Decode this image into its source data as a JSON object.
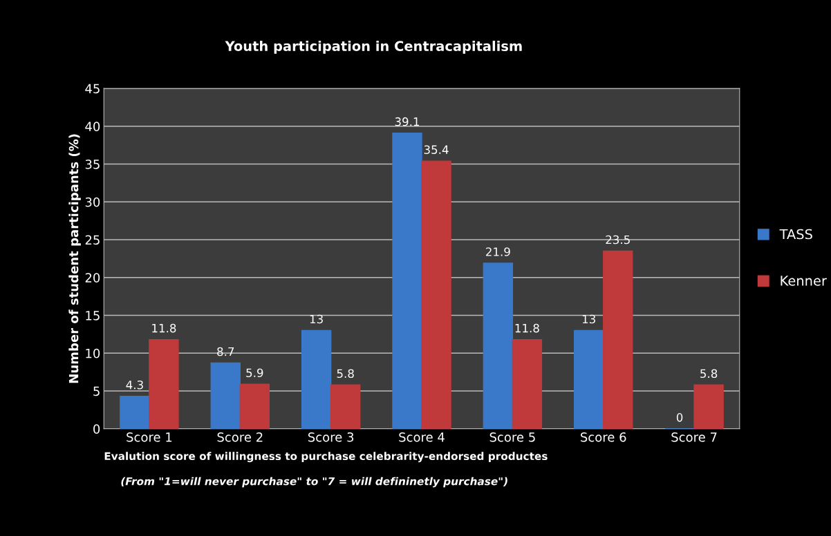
{
  "chart_data": {
    "type": "bar",
    "title": "Youth participation in Centracapitalism",
    "xlabel": "Evalution score of willingness to purchase celebrarity-endorsed productes",
    "ylabel": "Number of student participants (%)",
    "annotations": [
      "(From \"1=will never purchase\" to \"7 = will defininetly purchase\")"
    ],
    "categories": [
      "Score 1",
      "Score 2",
      "Score 3",
      "Score 4",
      "Score 5",
      "Score 6",
      "Score 7"
    ],
    "series": [
      {
        "name": "TASS",
        "color": "#3a78c9",
        "values": [
          4.3,
          8.7,
          13,
          39.1,
          21.9,
          13,
          0
        ]
      },
      {
        "name": "Kenner",
        "color": "#c0393b",
        "values": [
          11.8,
          5.9,
          5.8,
          35.4,
          11.8,
          23.5,
          5.8
        ]
      }
    ],
    "ylim": [
      0,
      45
    ],
    "yticks": [
      0,
      5,
      10,
      15,
      20,
      25,
      30,
      35,
      40,
      45
    ],
    "grid": "y",
    "legend": "right",
    "data_labels": true
  }
}
